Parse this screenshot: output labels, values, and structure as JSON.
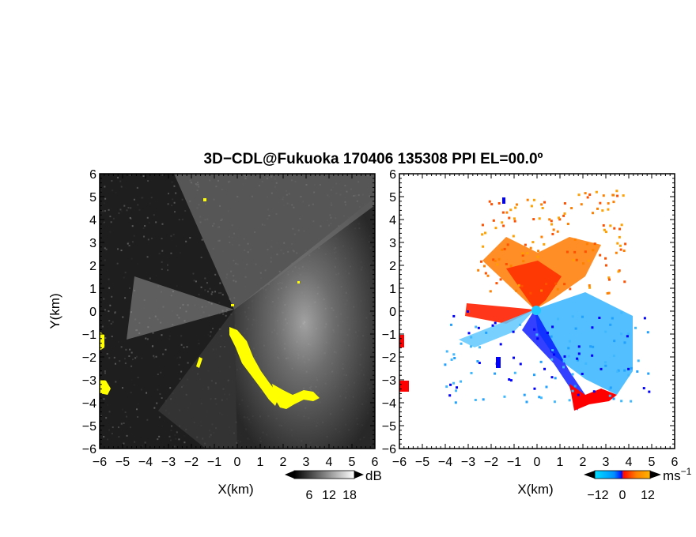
{
  "title": "3D−CDL@Fukuoka 170406 135308 PPI EL=00.0º",
  "chart_data": [
    {
      "type": "heatmap",
      "panel": "left",
      "quantity": "echo intensity",
      "xlabel": "X(km)",
      "ylabel": "Y(km)",
      "xlim": [
        -6,
        6
      ],
      "ylim": [
        -6,
        6
      ],
      "x_tick_labels": [
        "−6",
        "−5",
        "−4",
        "−3",
        "−2",
        "−1",
        "0",
        "1",
        "2",
        "3",
        "4",
        "5",
        "6"
      ],
      "y_tick_labels": [
        "6",
        "5",
        "4",
        "3",
        "2",
        "1",
        "0",
        "−1",
        "−2",
        "−3",
        "−4",
        "−5",
        "−6"
      ],
      "colorbar": {
        "unit": "dB",
        "tick_labels": [
          "6",
          "12",
          "18"
        ],
        "colors": [
          "#000000",
          "#ffffff"
        ]
      },
      "highlight_color": "#ffff00"
    },
    {
      "type": "heatmap",
      "panel": "right",
      "quantity": "doppler velocity",
      "xlabel": "X(km)",
      "xlim": [
        -6,
        6
      ],
      "ylim": [
        -6,
        6
      ],
      "x_tick_labels": [
        "−6",
        "−5",
        "−4",
        "−3",
        "−2",
        "−1",
        "0",
        "1",
        "2",
        "3",
        "4",
        "5",
        "6"
      ],
      "y_tick_labels": [
        "6",
        "5",
        "4",
        "3",
        "2",
        "1",
        "0",
        "−1",
        "−2",
        "−3",
        "−4",
        "−5",
        "−6"
      ],
      "colorbar": {
        "unit": "ms",
        "unit_exponent": "−1",
        "tick_labels": [
          "−12",
          "0",
          "12"
        ],
        "colors": [
          "#00e0ff",
          "#0090ff",
          "#0000ff",
          "#ff0000",
          "#ff8000",
          "#ffb400"
        ]
      }
    }
  ]
}
